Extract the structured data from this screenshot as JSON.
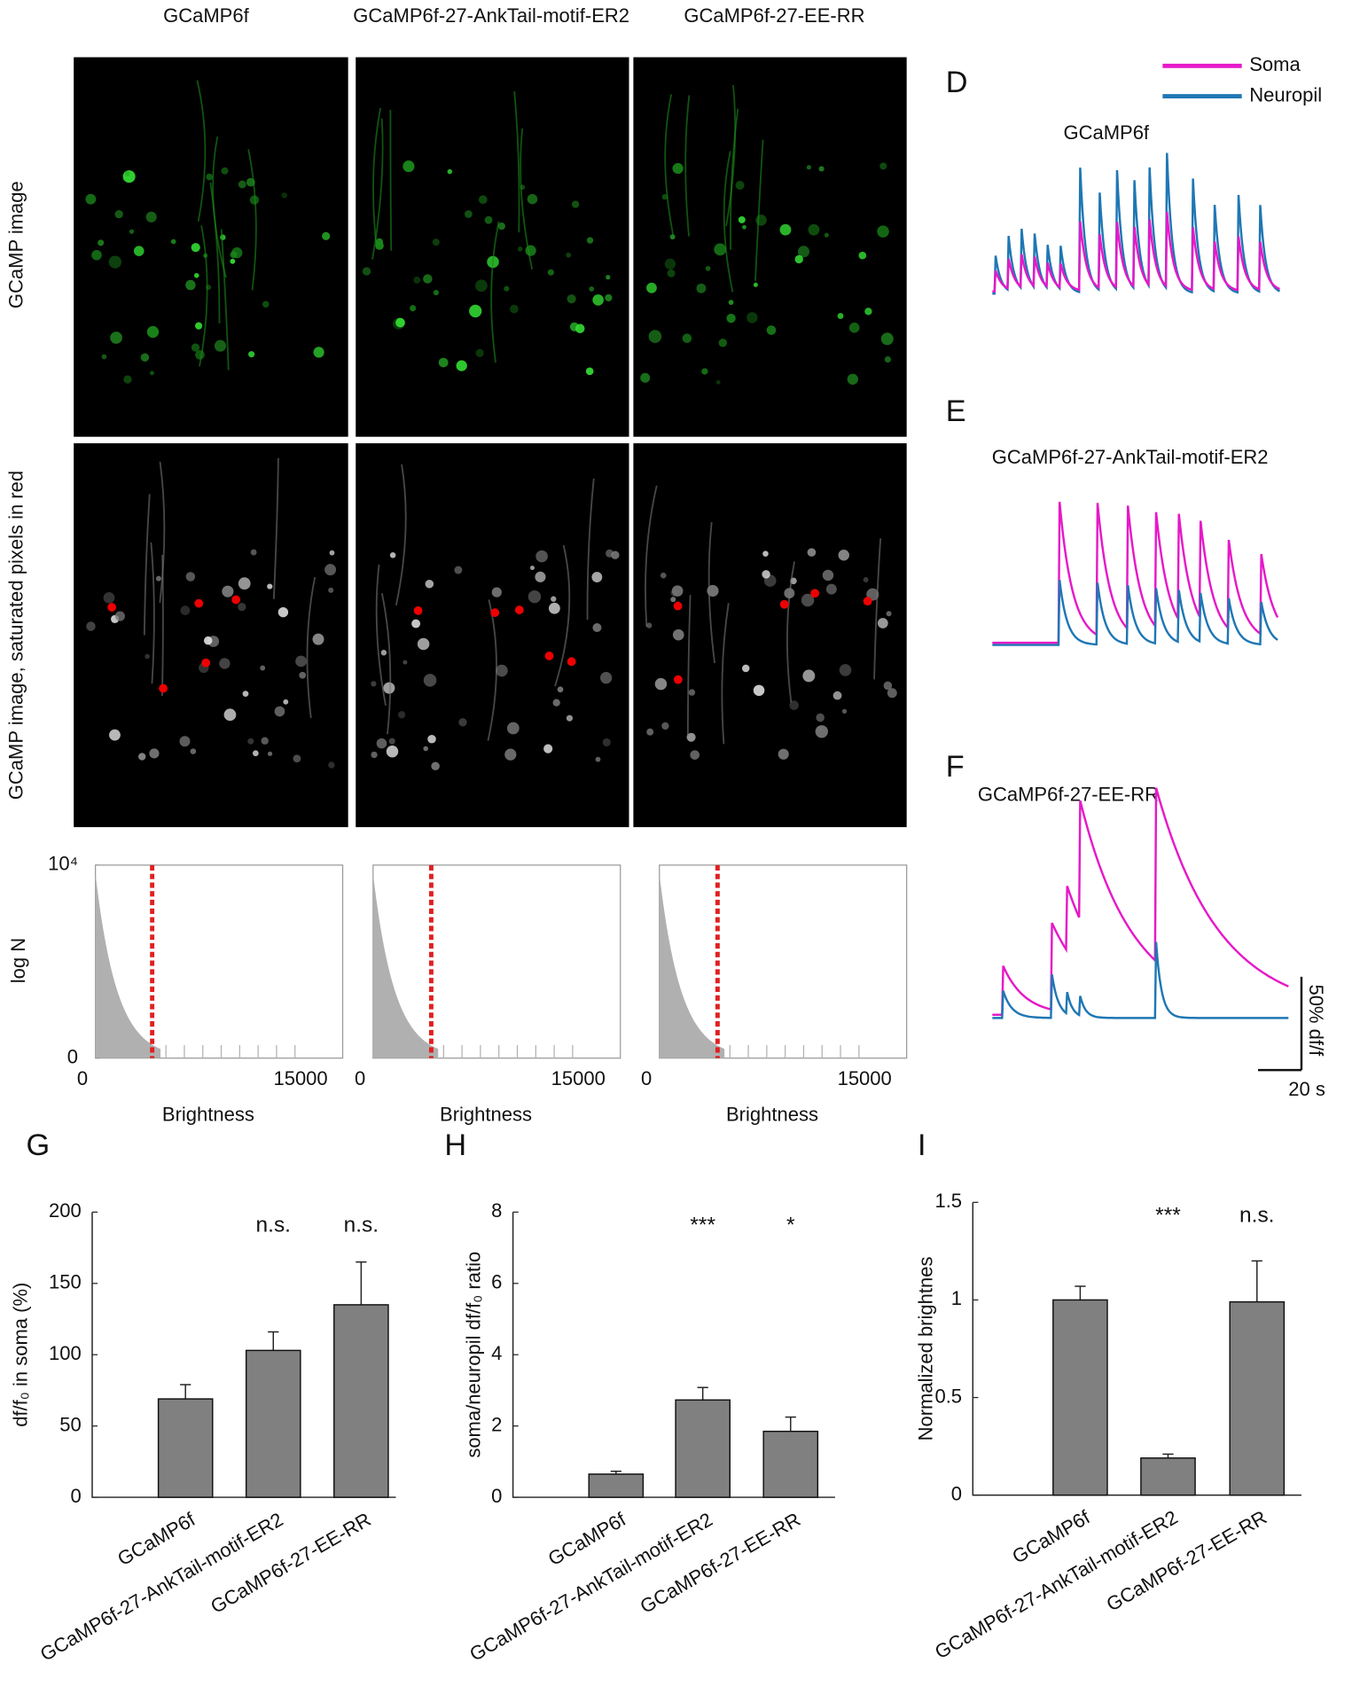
{
  "column_titles": [
    "GCaMP6f",
    "GCaMP6f-27-AnkTail-motif-ER2",
    "GCaMP6f-27-EE-RR"
  ],
  "row_labels": [
    "GCaMP image",
    "GCaMP image, saturated pixels in red"
  ],
  "legend": [
    {
      "name": "Soma",
      "color": "#e619c8"
    },
    {
      "name": "Neuropil",
      "color": "#1f77b4"
    }
  ],
  "traces": [
    {
      "panel": "D",
      "title": "GCaMP6f"
    },
    {
      "panel": "E",
      "title": "GCaMP6f-27-AnkTail-motif-ER2"
    },
    {
      "panel": "F",
      "title": "GCaMP6f-27-EE-RR"
    }
  ],
  "scale_bar": {
    "y_label": "50% df/f",
    "x_label": "20 s"
  },
  "chart_data": [
    {
      "type": "histogram",
      "ylabel": "log N",
      "xlabel": "Brightness",
      "xlim": [
        0,
        17000
      ],
      "xticks": [
        0,
        15000
      ],
      "yticks": [
        0,
        {
          "value": 10000,
          "label": "10⁴"
        }
      ],
      "threshold": 3900,
      "color": "#b0b0b0",
      "threshold_color": "#e02020"
    },
    {
      "type": "histogram",
      "xlabel": "Brightness",
      "xlim": [
        0,
        17000
      ],
      "xticks": [
        0,
        15000
      ],
      "threshold": 4000,
      "color": "#b0b0b0",
      "threshold_color": "#e02020"
    },
    {
      "type": "histogram",
      "xlabel": "Brightness",
      "xlim": [
        0,
        17000
      ],
      "xticks": [
        0,
        15000
      ],
      "threshold": 4000,
      "color": "#b0b0b0",
      "threshold_color": "#e02020"
    },
    {
      "type": "bar",
      "panel": "G",
      "ylabel": "df/f₀  in soma (%)",
      "categories": [
        "GCaMP6f",
        "GCaMP6f-27-AnkTail-motif-ER2",
        "GCaMP6f-27-EE-RR"
      ],
      "values": [
        69,
        103,
        135
      ],
      "errors": [
        10,
        13,
        30
      ],
      "significance": [
        null,
        "n.s.",
        "n.s."
      ],
      "ylim": [
        0,
        200
      ],
      "yticks": [
        0,
        50,
        100,
        150,
        200
      ],
      "color": "#808080"
    },
    {
      "type": "bar",
      "panel": "H",
      "ylabel": "soma/neuropil df/f₀ ratio",
      "categories": [
        "GCaMP6f",
        "GCaMP6f-27-AnkTail-motif-ER2",
        "GCaMP6f-27-EE-RR"
      ],
      "values": [
        0.65,
        2.73,
        1.85
      ],
      "errors": [
        0.08,
        0.35,
        0.4
      ],
      "significance": [
        null,
        "***",
        "*"
      ],
      "ylim": [
        0,
        8
      ],
      "yticks": [
        0,
        2,
        4,
        6,
        8
      ],
      "color": "#808080"
    },
    {
      "type": "bar",
      "panel": "I",
      "ylabel": "Normalized brightnes",
      "categories": [
        "GCaMP6f",
        "GCaMP6f-27-AnkTail-motif-ER2",
        "GCaMP6f-27-EE-RR"
      ],
      "values": [
        1.0,
        0.19,
        0.99
      ],
      "errors": [
        0.07,
        0.02,
        0.21
      ],
      "significance": [
        null,
        "***",
        "n.s."
      ],
      "ylim": [
        0,
        1.5
      ],
      "yticks": [
        0,
        0.5,
        1,
        1.5
      ],
      "color": "#808080"
    }
  ]
}
